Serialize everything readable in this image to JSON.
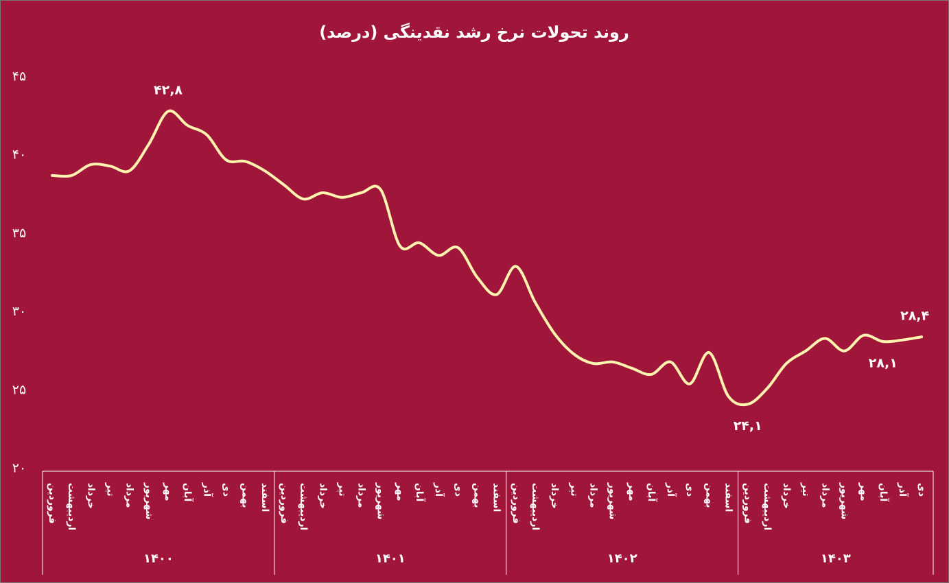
{
  "chart_data": {
    "type": "line",
    "title": "روند تحولات نرخ رشد نقدینگی (درصد)",
    "years": [
      {
        "name": "۱۴۰۰",
        "months": [
          "فروردین",
          "اردیبهشت",
          "خرداد",
          "تیر",
          "مرداد",
          "شهریور",
          "مهر",
          "آبان",
          "آذر",
          "دی",
          "بهمن",
          "اسفند"
        ]
      },
      {
        "name": "۱۴۰۱",
        "months": [
          "فروردین",
          "اردیبهشت",
          "خرداد",
          "تیر",
          "مرداد",
          "شهریور",
          "مهر",
          "آبان",
          "آذر",
          "دی",
          "بهمن",
          "اسفند"
        ]
      },
      {
        "name": "۱۴۰۲",
        "months": [
          "فروردین",
          "اردیبهشت",
          "خرداد",
          "تیر",
          "مرداد",
          "شهریور",
          "مهر",
          "آبان",
          "آذر",
          "دی",
          "بهمن",
          "اسفند"
        ]
      },
      {
        "name": "۱۴۰۳",
        "months": [
          "فروردین",
          "اردیبهشت",
          "خرداد",
          "تیر",
          "مرداد",
          "شهریور",
          "مهر",
          "آبان",
          "آذر",
          "دی"
        ]
      }
    ],
    "values": [
      38.7,
      38.7,
      39.4,
      39.3,
      39.0,
      40.7,
      42.8,
      41.9,
      41.3,
      39.7,
      39.6,
      39.0,
      38.1,
      37.2,
      37.6,
      37.3,
      37.6,
      37.8,
      34.2,
      34.4,
      33.6,
      34.1,
      32.2,
      31.1,
      32.9,
      30.6,
      28.6,
      27.3,
      26.7,
      26.8,
      26.4,
      26.0,
      26.8,
      25.4,
      27.4,
      24.6,
      24.1,
      25.1,
      26.7,
      27.5,
      28.3,
      27.5,
      28.5,
      28.1,
      28.2,
      28.4
    ],
    "value_labels": [
      null,
      null,
      null,
      null,
      null,
      null,
      "۴۲,۸",
      null,
      null,
      null,
      null,
      null,
      null,
      null,
      null,
      null,
      null,
      null,
      null,
      null,
      null,
      null,
      null,
      null,
      null,
      null,
      null,
      null,
      null,
      null,
      null,
      null,
      null,
      null,
      null,
      null,
      "۲۴,۱",
      null,
      null,
      null,
      null,
      null,
      null,
      "۲۸,۱",
      null,
      "۲۸,۴"
    ],
    "color": "#fff3b0",
    "ylim": [
      20,
      45
    ],
    "yticks": [
      {
        "value": 20,
        "label": "۲۰"
      },
      {
        "value": 25,
        "label": "۲۵"
      },
      {
        "value": 30,
        "label": "۳۰"
      },
      {
        "value": 35,
        "label": "۳۵"
      },
      {
        "value": 40,
        "label": "۴۰"
      },
      {
        "value": 45,
        "label": "۴۵"
      }
    ]
  }
}
